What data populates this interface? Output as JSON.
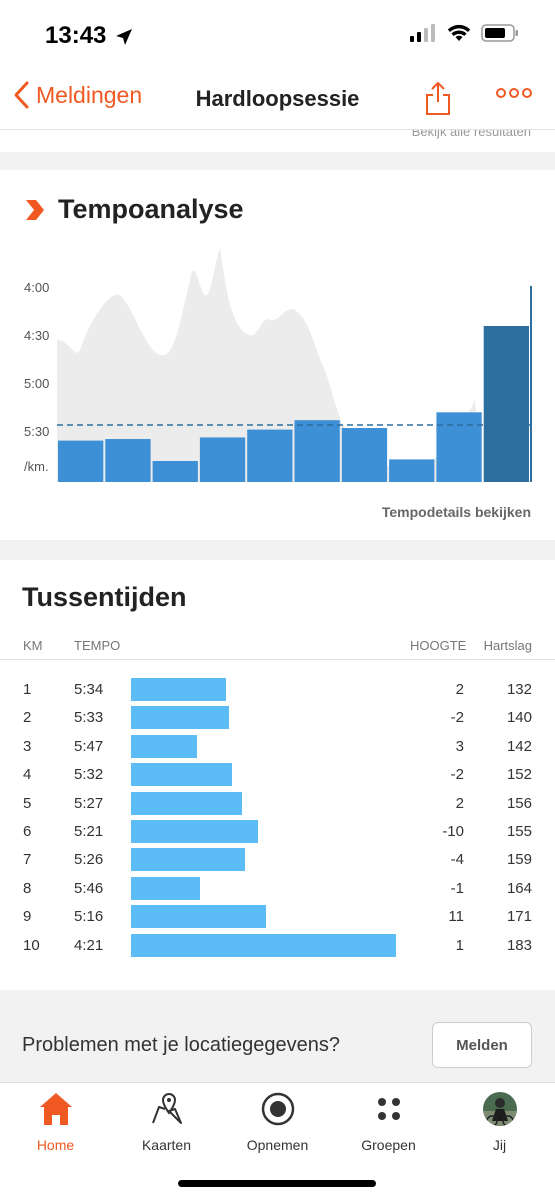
{
  "status": {
    "time": "13:43"
  },
  "nav": {
    "back_label": "Meldingen",
    "title": "Hardloopsessie"
  },
  "top_strip": {
    "text": "Bekijk alle resultaten"
  },
  "tempo": {
    "title": "Tempoanalyse",
    "link": "Tempodetails bekijken",
    "accent": "#f05a22"
  },
  "chart_data": {
    "type": "bar",
    "categories": [
      "1",
      "2",
      "3",
      "4",
      "5",
      "6",
      "7",
      "8",
      "9",
      "10"
    ],
    "values": [
      "5:34",
      "5:33",
      "5:47",
      "5:32",
      "5:27",
      "5:21",
      "5:26",
      "5:46",
      "5:16",
      "4:21"
    ],
    "values_seconds": [
      334,
      333,
      347,
      332,
      327,
      321,
      326,
      346,
      316,
      261
    ],
    "y_tick_labels": [
      "4:00",
      "4:30",
      "5:00",
      "5:30",
      "/km."
    ],
    "y_ticks_seconds": [
      240,
      270,
      300,
      330
    ],
    "ylim_seconds": [
      240,
      360
    ],
    "average_line_seconds": 327,
    "background": "elevation profile (grey area)",
    "bar_color": "#3d8fd6",
    "highlight_bar_color": "#2d6f9e",
    "grid": false
  },
  "splits": {
    "title": "Tussentijden",
    "headers": {
      "km": "KM",
      "tempo": "TEMPO",
      "height": "HOOGTE",
      "hr": "Hartslag"
    },
    "rows": [
      {
        "km": "1",
        "tempo": "5:34",
        "height": "2",
        "hr": "132",
        "bar": 0.36
      },
      {
        "km": "2",
        "tempo": "5:33",
        "height": "-2",
        "hr": "140",
        "bar": 0.37
      },
      {
        "km": "3",
        "tempo": "5:47",
        "height": "3",
        "hr": "142",
        "bar": 0.25
      },
      {
        "km": "4",
        "tempo": "5:32",
        "height": "-2",
        "hr": "152",
        "bar": 0.38
      },
      {
        "km": "5",
        "tempo": "5:27",
        "height": "2",
        "hr": "156",
        "bar": 0.42
      },
      {
        "km": "6",
        "tempo": "5:21",
        "height": "-10",
        "hr": "155",
        "bar": 0.48
      },
      {
        "km": "7",
        "tempo": "5:26",
        "height": "-4",
        "hr": "159",
        "bar": 0.43
      },
      {
        "km": "8",
        "tempo": "5:46",
        "height": "-1",
        "hr": "164",
        "bar": 0.26
      },
      {
        "km": "9",
        "tempo": "5:16",
        "height": "11",
        "hr": "171",
        "bar": 0.51
      },
      {
        "km": "10",
        "tempo": "4:21",
        "height": "1",
        "hr": "183",
        "bar": 1.0
      }
    ],
    "bar_color": "#5bbcf6"
  },
  "location": {
    "question": "Problemen met je locatiegegevens?",
    "button": "Melden"
  },
  "tabs": [
    {
      "label": "Home",
      "icon": "home-icon",
      "active": true
    },
    {
      "label": "Kaarten",
      "icon": "map-icon"
    },
    {
      "label": "Opnemen",
      "icon": "record-icon"
    },
    {
      "label": "Groepen",
      "icon": "groups-icon"
    },
    {
      "label": "Jij",
      "icon": "avatar-icon"
    }
  ]
}
